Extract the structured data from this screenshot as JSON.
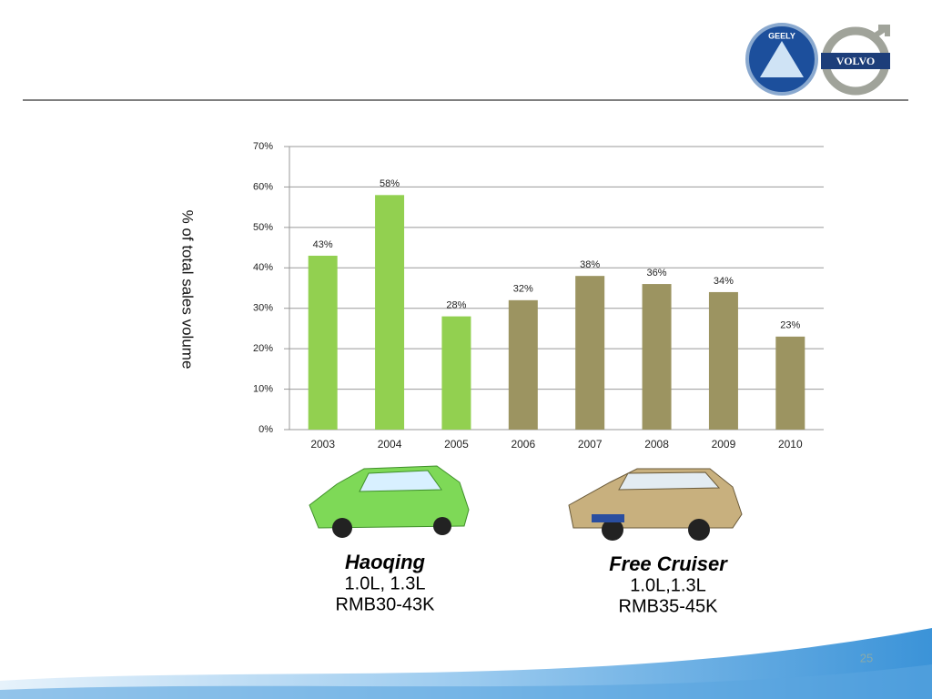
{
  "chart_data": {
    "type": "bar",
    "y_label": "% of total sales volume",
    "categories": [
      "2003",
      "2004",
      "2005",
      "2006",
      "2007",
      "2008",
      "2009",
      "2010"
    ],
    "values": [
      43,
      58,
      28,
      32,
      38,
      36,
      34,
      23
    ],
    "value_labels": [
      "43%",
      "58%",
      "28%",
      "32%",
      "38%",
      "36%",
      "34%",
      "23%"
    ],
    "colors": [
      "#92d050",
      "#92d050",
      "#92d050",
      "#9c9461",
      "#9c9461",
      "#9c9461",
      "#9c9461",
      "#9c9461"
    ],
    "ylim": [
      0,
      70
    ],
    "yticks": [
      {
        "value": 0,
        "label": "0%"
      },
      {
        "value": 10,
        "label": "10%"
      },
      {
        "value": 20,
        "label": "20%"
      },
      {
        "value": 30,
        "label": "30%"
      },
      {
        "value": 40,
        "label": "40%"
      },
      {
        "value": 50,
        "label": "50%"
      },
      {
        "value": 60,
        "label": "60%"
      },
      {
        "value": 70,
        "label": "70%"
      }
    ],
    "grid": true
  },
  "cars": [
    {
      "name": "Haoqing",
      "engine": "1.0L, 1.3L",
      "price": "RMB30-43K"
    },
    {
      "name": "Free Cruiser",
      "engine": "1.0L,1.3L",
      "price": "RMB35-45K"
    }
  ],
  "logos": {
    "left": "GEELY",
    "right": "VOLVO"
  },
  "page_number": "25"
}
